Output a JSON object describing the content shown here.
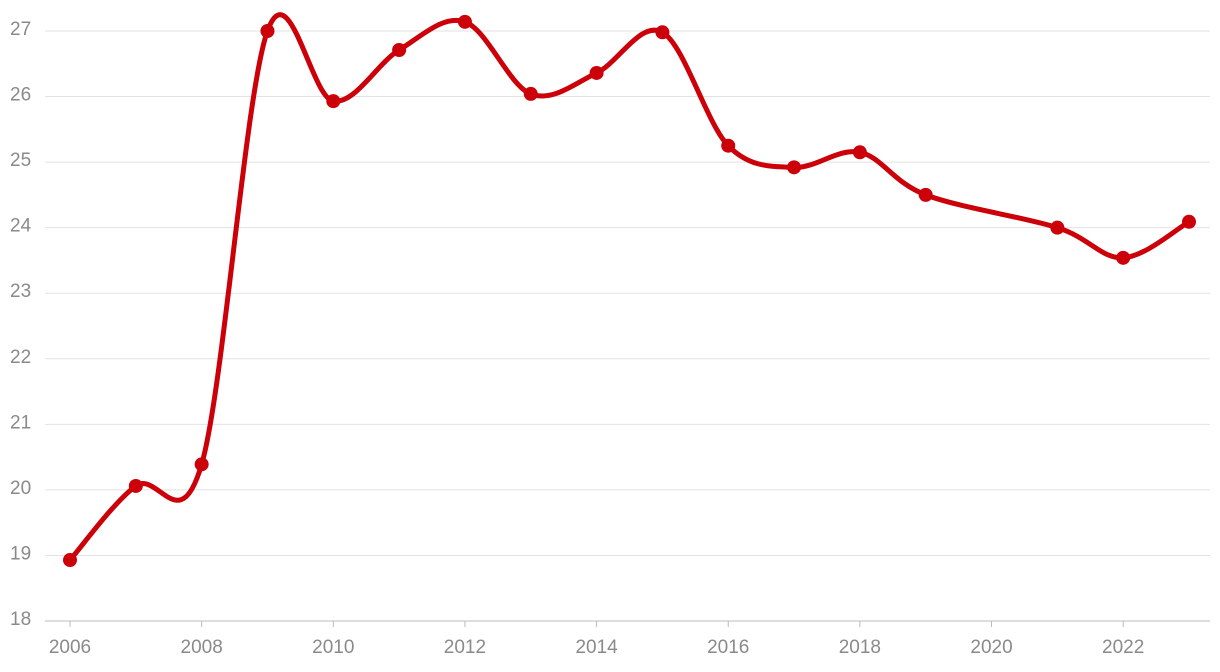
{
  "chart_data": {
    "type": "line",
    "x": [
      2006,
      2007,
      2008,
      2009,
      2010,
      2011,
      2012,
      2013,
      2014,
      2015,
      2016,
      2017,
      2018,
      2019,
      2021,
      2022,
      2023
    ],
    "series": [
      {
        "color": "#cc0008",
        "values": [
          18.93,
          20.06,
          20.39,
          27.0,
          25.93,
          26.71,
          27.14,
          26.04,
          26.36,
          26.98,
          25.25,
          24.92,
          25.15,
          24.5,
          24.0,
          23.54,
          24.09
        ]
      }
    ],
    "xlim": [
      2006,
      2023
    ],
    "xticks": [
      2006,
      2008,
      2010,
      2012,
      2014,
      2016,
      2018,
      2020,
      2022
    ],
    "ylim": [
      18,
      27
    ],
    "yticks": [
      18,
      19,
      20,
      21,
      22,
      23,
      24,
      25,
      26,
      27
    ],
    "grid": true,
    "smooth": true,
    "markers": true
  }
}
